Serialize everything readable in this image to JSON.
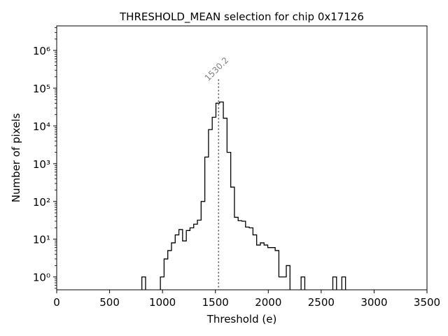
{
  "chart_data": {
    "type": "histogram",
    "title": "THRESHOLD_MEAN selection for chip 0x17126",
    "xlabel": "Threshold (e)",
    "ylabel": "Number of pixels",
    "xlim": [
      0,
      3500
    ],
    "ylim_log10": [
      -0.34,
      6.65
    ],
    "yscale": "log",
    "x_ticks": [
      0,
      500,
      1000,
      1500,
      2000,
      2500,
      3000,
      3500
    ],
    "y_ticks": [
      {
        "exp": 0,
        "label": "10⁰"
      },
      {
        "exp": 1,
        "label": "10¹"
      },
      {
        "exp": 2,
        "label": "10²"
      },
      {
        "exp": 3,
        "label": "10³"
      },
      {
        "exp": 4,
        "label": "10⁴"
      },
      {
        "exp": 5,
        "label": "10⁵"
      },
      {
        "exp": 6,
        "label": "10⁶"
      }
    ],
    "marker": {
      "x": 1530.2,
      "label": "1530.2",
      "y_top": 170000
    },
    "bin_width": 35,
    "bins": [
      [
        805,
        840,
        1
      ],
      [
        980,
        1015,
        1
      ],
      [
        1015,
        1050,
        3
      ],
      [
        1050,
        1085,
        5
      ],
      [
        1085,
        1120,
        8
      ],
      [
        1120,
        1155,
        13
      ],
      [
        1155,
        1190,
        18
      ],
      [
        1190,
        1225,
        9
      ],
      [
        1225,
        1260,
        17
      ],
      [
        1260,
        1295,
        20
      ],
      [
        1295,
        1330,
        25
      ],
      [
        1330,
        1365,
        32
      ],
      [
        1365,
        1400,
        100
      ],
      [
        1400,
        1435,
        1500
      ],
      [
        1435,
        1470,
        8000
      ],
      [
        1470,
        1505,
        17000
      ],
      [
        1505,
        1540,
        40000
      ],
      [
        1540,
        1575,
        43000
      ],
      [
        1575,
        1610,
        16000
      ],
      [
        1610,
        1645,
        2000
      ],
      [
        1645,
        1680,
        240
      ],
      [
        1680,
        1715,
        38
      ],
      [
        1715,
        1750,
        31
      ],
      [
        1750,
        1785,
        30
      ],
      [
        1785,
        1820,
        21
      ],
      [
        1820,
        1855,
        20
      ],
      [
        1855,
        1890,
        13
      ],
      [
        1890,
        1925,
        7
      ],
      [
        1925,
        1960,
        8
      ],
      [
        1960,
        1995,
        7
      ],
      [
        1995,
        2030,
        6
      ],
      [
        2030,
        2065,
        6
      ],
      [
        2065,
        2100,
        5
      ],
      [
        2100,
        2135,
        1
      ],
      [
        2135,
        2170,
        1
      ],
      [
        2170,
        2205,
        2
      ],
      [
        2310,
        2345,
        1
      ],
      [
        2610,
        2645,
        1
      ],
      [
        2695,
        2730,
        1
      ]
    ]
  }
}
